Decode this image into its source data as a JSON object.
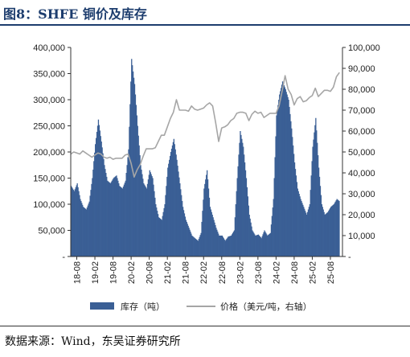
{
  "header": {
    "title": "图8：SHFE 铜价及库存"
  },
  "footer": {
    "source": "数据来源：Wind，东吴证券研究所"
  },
  "chart_data": {
    "type": "bar+line",
    "title": "",
    "x_ticks": [
      "18-08",
      "19-02",
      "19-08",
      "20-02",
      "20-08",
      "21-02",
      "21-08",
      "22-02",
      "22-08",
      "23-02",
      "23-08",
      "24-02",
      "24-08",
      "25-02",
      "25-08"
    ],
    "x_start": "2018-06",
    "x_end": "2025-12",
    "left_axis": {
      "min": 0,
      "max": 400000,
      "ticks": [
        0,
        50000,
        100000,
        150000,
        200000,
        250000,
        300000,
        350000,
        400000
      ],
      "tick_labels": [
        "-",
        "50,000",
        "100,000",
        "150,000",
        "200,000",
        "250,000",
        "300,000",
        "350,000",
        "400,000"
      ]
    },
    "right_axis": {
      "min": 0,
      "max": 100000,
      "ticks": [
        0,
        10000,
        20000,
        30000,
        40000,
        50000,
        60000,
        70000,
        80000,
        90000,
        100000
      ],
      "tick_labels": [
        "-",
        "10,000",
        "20,000",
        "30,000",
        "40,000",
        "50,000",
        "60,000",
        "70,000",
        "80,000",
        "90,000",
        "100,000"
      ]
    },
    "series": [
      {
        "name": "库存（吨）",
        "type": "bar",
        "axis": "left",
        "color": "#3a5f95",
        "points": [
          [
            "2018-06",
            135000
          ],
          [
            "2018-07",
            125000
          ],
          [
            "2018-08",
            140000
          ],
          [
            "2018-09",
            110000
          ],
          [
            "2018-10",
            95000
          ],
          [
            "2018-11",
            90000
          ],
          [
            "2018-12",
            105000
          ],
          [
            "2019-01",
            150000
          ],
          [
            "2019-02",
            215000
          ],
          [
            "2019-03",
            262000
          ],
          [
            "2019-04",
            220000
          ],
          [
            "2019-05",
            175000
          ],
          [
            "2019-06",
            145000
          ],
          [
            "2019-07",
            140000
          ],
          [
            "2019-08",
            150000
          ],
          [
            "2019-09",
            155000
          ],
          [
            "2019-10",
            135000
          ],
          [
            "2019-11",
            130000
          ],
          [
            "2019-12",
            145000
          ],
          [
            "2020-01",
            205000
          ],
          [
            "2020-02",
            378000
          ],
          [
            "2020-03",
            330000
          ],
          [
            "2020-04",
            250000
          ],
          [
            "2020-05",
            175000
          ],
          [
            "2020-06",
            140000
          ],
          [
            "2020-07",
            130000
          ],
          [
            "2020-08",
            165000
          ],
          [
            "2020-09",
            150000
          ],
          [
            "2020-10",
            100000
          ],
          [
            "2020-11",
            75000
          ],
          [
            "2020-12",
            70000
          ],
          [
            "2021-01",
            100000
          ],
          [
            "2021-02",
            170000
          ],
          [
            "2021-03",
            200000
          ],
          [
            "2021-04",
            225000
          ],
          [
            "2021-05",
            185000
          ],
          [
            "2021-06",
            140000
          ],
          [
            "2021-07",
            95000
          ],
          [
            "2021-08",
            70000
          ],
          [
            "2021-09",
            55000
          ],
          [
            "2021-10",
            40000
          ],
          [
            "2021-11",
            35000
          ],
          [
            "2021-12",
            30000
          ],
          [
            "2022-01",
            45000
          ],
          [
            "2022-02",
            130000
          ],
          [
            "2022-03",
            165000
          ],
          [
            "2022-04",
            95000
          ],
          [
            "2022-05",
            75000
          ],
          [
            "2022-06",
            55000
          ],
          [
            "2022-07",
            40000
          ],
          [
            "2022-08",
            40000
          ],
          [
            "2022-09",
            30000
          ],
          [
            "2022-10",
            38000
          ],
          [
            "2022-11",
            40000
          ],
          [
            "2022-12",
            50000
          ],
          [
            "2023-01",
            150000
          ],
          [
            "2023-02",
            240000
          ],
          [
            "2023-03",
            210000
          ],
          [
            "2023-04",
            150000
          ],
          [
            "2023-05",
            80000
          ],
          [
            "2023-06",
            50000
          ],
          [
            "2023-07",
            40000
          ],
          [
            "2023-08",
            42000
          ],
          [
            "2023-09",
            35000
          ],
          [
            "2023-10",
            50000
          ],
          [
            "2023-11",
            40000
          ],
          [
            "2023-12",
            45000
          ],
          [
            "2024-01",
            110000
          ],
          [
            "2024-02",
            270000
          ],
          [
            "2024-03",
            310000
          ],
          [
            "2024-04",
            335000
          ],
          [
            "2024-05",
            320000
          ],
          [
            "2024-06",
            300000
          ],
          [
            "2024-07",
            245000
          ],
          [
            "2024-08",
            180000
          ],
          [
            "2024-09",
            130000
          ],
          [
            "2024-10",
            110000
          ],
          [
            "2024-11",
            95000
          ],
          [
            "2024-12",
            80000
          ],
          [
            "2025-01",
            100000
          ],
          [
            "2025-02",
            210000
          ],
          [
            "2025-03",
            265000
          ],
          [
            "2025-04",
            170000
          ],
          [
            "2025-05",
            100000
          ],
          [
            "2025-06",
            80000
          ],
          [
            "2025-07",
            85000
          ],
          [
            "2025-08",
            95000
          ],
          [
            "2025-09",
            100000
          ],
          [
            "2025-10",
            110000
          ],
          [
            "2025-11",
            105000
          ]
        ]
      },
      {
        "name": "价格（美元/吨，右轴）",
        "type": "line",
        "axis": "right",
        "color": "#a6a6a6",
        "points": [
          [
            "2018-06",
            49000
          ],
          [
            "2018-07",
            50000
          ],
          [
            "2018-08",
            49500
          ],
          [
            "2018-09",
            49000
          ],
          [
            "2018-10",
            50500
          ],
          [
            "2018-11",
            49500
          ],
          [
            "2018-12",
            48500
          ],
          [
            "2019-01",
            47500
          ],
          [
            "2019-02",
            48500
          ],
          [
            "2019-03",
            49500
          ],
          [
            "2019-04",
            49000
          ],
          [
            "2019-05",
            47500
          ],
          [
            "2019-06",
            47000
          ],
          [
            "2019-07",
            47500
          ],
          [
            "2019-08",
            46500
          ],
          [
            "2019-09",
            47000
          ],
          [
            "2019-10",
            47000
          ],
          [
            "2019-11",
            47000
          ],
          [
            "2019-12",
            48500
          ],
          [
            "2020-01",
            49000
          ],
          [
            "2020-02",
            44500
          ],
          [
            "2020-03",
            38000
          ],
          [
            "2020-04",
            41500
          ],
          [
            "2020-05",
            44000
          ],
          [
            "2020-06",
            48000
          ],
          [
            "2020-07",
            51500
          ],
          [
            "2020-08",
            51500
          ],
          [
            "2020-09",
            51500
          ],
          [
            "2020-10",
            52000
          ],
          [
            "2020-11",
            55000
          ],
          [
            "2020-12",
            58000
          ],
          [
            "2021-01",
            58000
          ],
          [
            "2021-02",
            62000
          ],
          [
            "2021-03",
            66000
          ],
          [
            "2021-04",
            69000
          ],
          [
            "2021-05",
            75000
          ],
          [
            "2021-06",
            70000
          ],
          [
            "2021-07",
            70000
          ],
          [
            "2021-08",
            70000
          ],
          [
            "2021-09",
            69500
          ],
          [
            "2021-10",
            72000
          ],
          [
            "2021-11",
            70500
          ],
          [
            "2021-12",
            70000
          ],
          [
            "2022-01",
            70500
          ],
          [
            "2022-02",
            71000
          ],
          [
            "2022-03",
            72500
          ],
          [
            "2022-04",
            73500
          ],
          [
            "2022-05",
            72000
          ],
          [
            "2022-06",
            64000
          ],
          [
            "2022-07",
            55000
          ],
          [
            "2022-08",
            61500
          ],
          [
            "2022-09",
            62000
          ],
          [
            "2022-10",
            63000
          ],
          [
            "2022-11",
            65000
          ],
          [
            "2022-12",
            66000
          ],
          [
            "2023-01",
            68500
          ],
          [
            "2023-02",
            69000
          ],
          [
            "2023-03",
            69000
          ],
          [
            "2023-04",
            68500
          ],
          [
            "2023-05",
            65000
          ],
          [
            "2023-06",
            68000
          ],
          [
            "2023-07",
            69500
          ],
          [
            "2023-08",
            68500
          ],
          [
            "2023-09",
            69000
          ],
          [
            "2023-10",
            66500
          ],
          [
            "2023-11",
            67500
          ],
          [
            "2023-12",
            68500
          ],
          [
            "2024-01",
            68500
          ],
          [
            "2024-02",
            68500
          ],
          [
            "2024-03",
            72000
          ],
          [
            "2024-04",
            79000
          ],
          [
            "2024-05",
            86500
          ],
          [
            "2024-06",
            80000
          ],
          [
            "2024-07",
            77500
          ],
          [
            "2024-08",
            72500
          ],
          [
            "2024-09",
            75500
          ],
          [
            "2024-10",
            76500
          ],
          [
            "2024-11",
            74000
          ],
          [
            "2024-12",
            74500
          ],
          [
            "2025-01",
            76000
          ],
          [
            "2025-02",
            77000
          ],
          [
            "2025-03",
            80500
          ],
          [
            "2025-04",
            76500
          ],
          [
            "2025-05",
            78000
          ],
          [
            "2025-06",
            79500
          ],
          [
            "2025-07",
            79500
          ],
          [
            "2025-08",
            79000
          ],
          [
            "2025-09",
            81000
          ],
          [
            "2025-10",
            86000
          ],
          [
            "2025-11",
            88000
          ]
        ]
      }
    ],
    "legend": {
      "placement": "bottom"
    }
  }
}
